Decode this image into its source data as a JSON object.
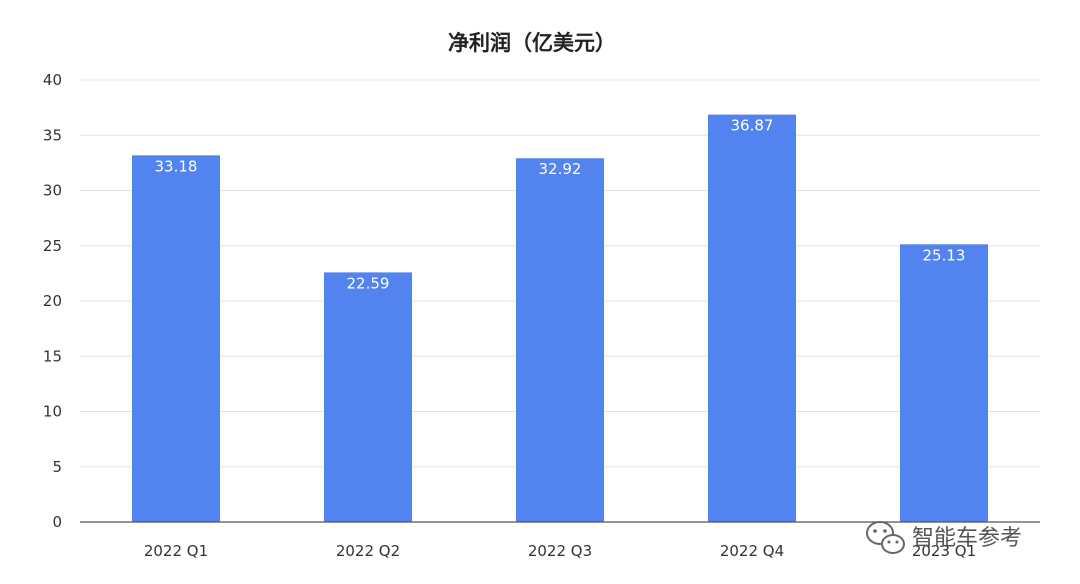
{
  "chart_data": {
    "type": "bar",
    "title": "净利润（亿美元）",
    "xlabel": "",
    "ylabel": "",
    "categories": [
      "2022 Q1",
      "2022 Q2",
      "2022 Q3",
      "2022 Q4",
      "2023 Q1"
    ],
    "values": [
      33.18,
      22.59,
      32.92,
      36.87,
      25.13
    ],
    "data_labels": [
      "33.18",
      "22.59",
      "32.92",
      "36.87",
      "25.13"
    ],
    "ylim": [
      0,
      40
    ],
    "yticks": [
      0,
      5,
      10,
      15,
      20,
      25,
      30,
      35,
      40
    ],
    "grid": true,
    "legend": "none",
    "bar_color": "#5283EE"
  },
  "watermark": {
    "text": "智能车参考",
    "icon": "wechat-icon"
  }
}
